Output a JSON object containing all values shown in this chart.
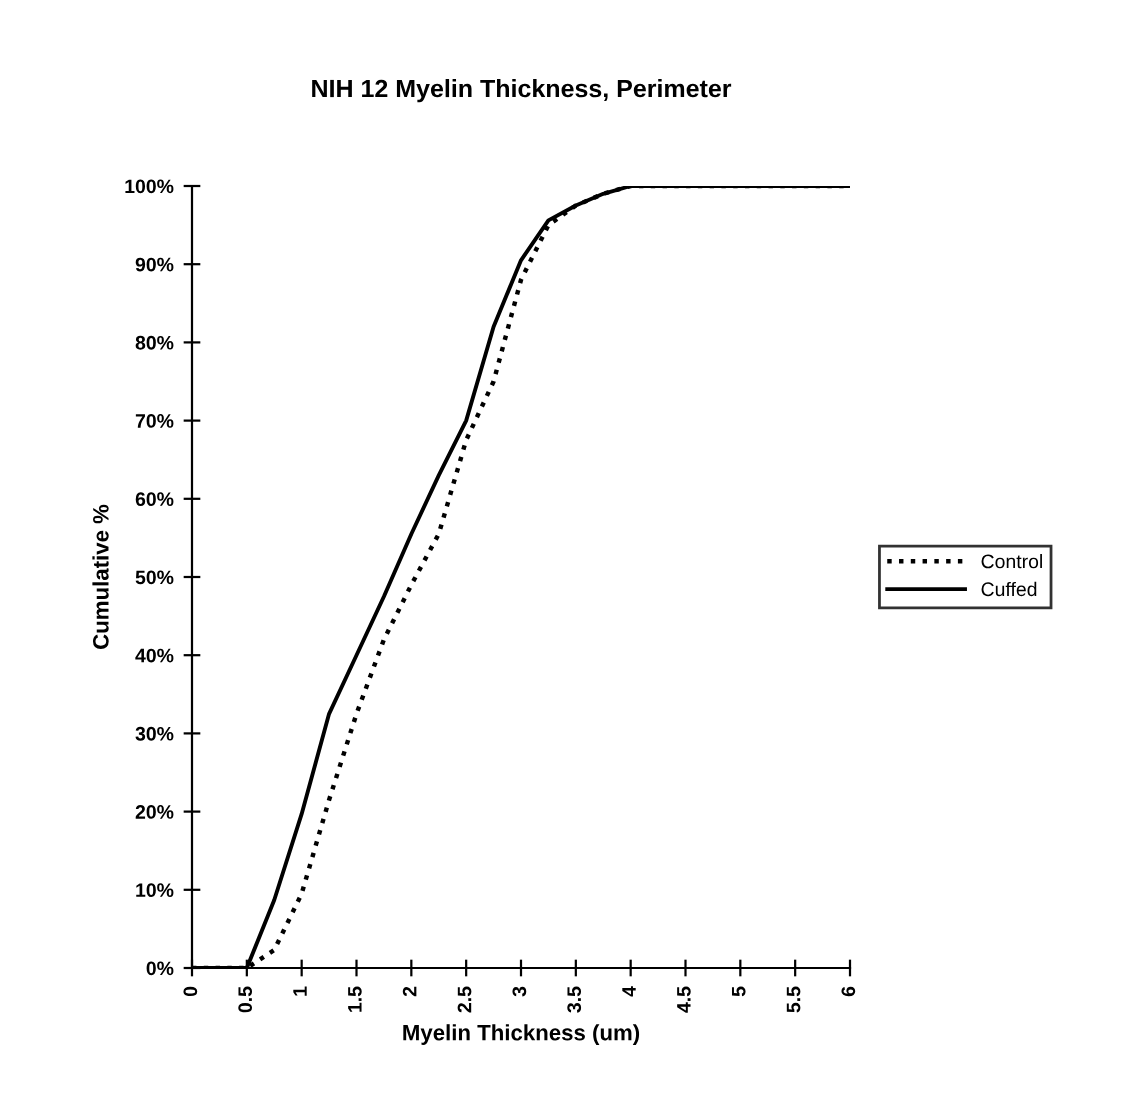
{
  "chart_data": {
    "type": "line",
    "title": "NIH 12 Myelin Thickness, Perimeter",
    "xlabel": "Myelin Thickness (um)",
    "ylabel": "Cumulative %",
    "x": [
      0,
      0.25,
      0.5,
      0.75,
      1,
      1.25,
      1.5,
      1.75,
      2,
      2.25,
      2.5,
      2.75,
      3,
      3.25,
      3.5,
      3.75,
      4,
      4.25,
      4.5,
      4.75,
      5,
      5.25,
      5.5,
      5.75,
      6
    ],
    "series": [
      {
        "name": "Control",
        "color": "#000000",
        "line_style": "dotted",
        "values": [
          0,
          0,
          0,
          2.3,
          9.5,
          21.5,
          32.5,
          42,
          49,
          55.5,
          67.5,
          75,
          88,
          95,
          97.5,
          99,
          100,
          100,
          100,
          100,
          100,
          100,
          100,
          100,
          100
        ]
      },
      {
        "name": "Cuffed",
        "color": "#000000",
        "line_style": "solid",
        "values": [
          0,
          0,
          0,
          8.7,
          19.7,
          32.5,
          40,
          47.5,
          55.5,
          63,
          70,
          82,
          90.5,
          95.6,
          97.5,
          99,
          100,
          100,
          100,
          100,
          100,
          100,
          100,
          100,
          100
        ]
      }
    ],
    "xlim": [
      0,
      6
    ],
    "xticks": [
      0,
      0.5,
      1,
      1.5,
      2,
      2.5,
      3,
      3.5,
      4,
      4.5,
      5,
      5.5,
      6
    ],
    "ylim": [
      0,
      100
    ],
    "yticks": [
      {
        "value": 0,
        "label": "0%"
      },
      {
        "value": 10,
        "label": "10%"
      },
      {
        "value": 20,
        "label": "20%"
      },
      {
        "value": 30,
        "label": "30%"
      },
      {
        "value": 40,
        "label": "40%"
      },
      {
        "value": 50,
        "label": "50%"
      },
      {
        "value": 60,
        "label": "60%"
      },
      {
        "value": 70,
        "label": "70%"
      },
      {
        "value": 80,
        "label": "80%"
      },
      {
        "value": 90,
        "label": "90%"
      },
      {
        "value": 100,
        "label": "100%"
      }
    ],
    "grid": false,
    "legend": "right",
    "marker": "none"
  }
}
